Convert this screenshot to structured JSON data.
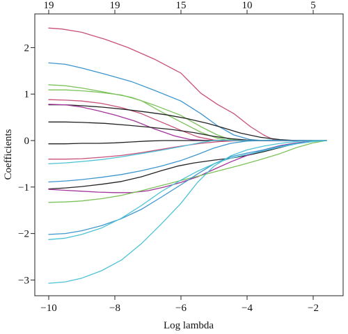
{
  "chart_data": {
    "type": "line",
    "xlabel": "Log lambda",
    "ylabel": "Coefficients",
    "xlim": [
      -10,
      -1.5
    ],
    "ylim": [
      -3.15,
      2.5
    ],
    "x_ticks": [
      -10,
      -8,
      -6,
      -4,
      -2
    ],
    "y_ticks": [
      -3,
      -2,
      -1,
      0,
      1,
      2
    ],
    "x_tick_labels": [
      "−10",
      "−8",
      "−6",
      "−4",
      "−2"
    ],
    "y_tick_labels": [
      "−3",
      "−2",
      "−1",
      "0",
      "1",
      "2"
    ],
    "top_axis": {
      "ticks": [
        -10,
        -8,
        -6,
        -4,
        -2
      ],
      "labels": [
        "19",
        "19",
        "15",
        "10",
        "5"
      ]
    },
    "grid": false,
    "legend": "none",
    "series": [
      {
        "color": "#c8507a",
        "points": [
          [
            -10,
            2.42
          ],
          [
            -9.6,
            2.4
          ],
          [
            -9,
            2.33
          ],
          [
            -8.3,
            2.18
          ],
          [
            -7.6,
            2.0
          ],
          [
            -6.8,
            1.75
          ],
          [
            -6.0,
            1.45
          ],
          [
            -5.4,
            1.02
          ],
          [
            -4.9,
            0.78
          ],
          [
            -4.4,
            0.58
          ],
          [
            -3.9,
            0.3
          ],
          [
            -3.5,
            0.12
          ],
          [
            -3.2,
            0.02
          ],
          [
            -2.9,
            0.0
          ],
          [
            -1.6,
            0.0
          ]
        ]
      },
      {
        "color": "#3d95cf",
        "points": [
          [
            -10,
            1.67
          ],
          [
            -9.5,
            1.64
          ],
          [
            -9,
            1.56
          ],
          [
            -8.3,
            1.43
          ],
          [
            -7.5,
            1.27
          ],
          [
            -6.8,
            1.08
          ],
          [
            -6.0,
            0.85
          ],
          [
            -5.4,
            0.58
          ],
          [
            -4.9,
            0.32
          ],
          [
            -4.4,
            0.12
          ],
          [
            -3.9,
            0.02
          ],
          [
            -3.5,
            0.0
          ],
          [
            -1.6,
            0.0
          ]
        ]
      },
      {
        "color": "#7cc25a",
        "points": [
          [
            -10,
            1.2
          ],
          [
            -9.5,
            1.18
          ],
          [
            -9,
            1.13
          ],
          [
            -8.3,
            1.04
          ],
          [
            -7.5,
            0.93
          ],
          [
            -6.8,
            0.76
          ],
          [
            -6.0,
            0.54
          ],
          [
            -5.4,
            0.3
          ],
          [
            -4.9,
            0.12
          ],
          [
            -4.5,
            0.02
          ],
          [
            -4.2,
            0.0
          ],
          [
            -1.6,
            0.0
          ]
        ]
      },
      {
        "color": "#7cc25a",
        "points": [
          [
            -10,
            1.09
          ],
          [
            -9.5,
            1.09
          ],
          [
            -9,
            1.07
          ],
          [
            -8.5,
            1.04
          ],
          [
            -7.8,
            0.98
          ],
          [
            -7.2,
            0.86
          ],
          [
            -6.6,
            0.62
          ],
          [
            -6.0,
            0.4
          ],
          [
            -5.4,
            0.18
          ],
          [
            -4.9,
            0.05
          ],
          [
            -4.5,
            0.0
          ],
          [
            -1.6,
            0.0
          ]
        ]
      },
      {
        "color": "#c8507a",
        "points": [
          [
            -10,
            0.88
          ],
          [
            -9.5,
            0.87
          ],
          [
            -9,
            0.85
          ],
          [
            -8.4,
            0.8
          ],
          [
            -7.8,
            0.71
          ],
          [
            -7.2,
            0.58
          ],
          [
            -6.6,
            0.4
          ],
          [
            -6.0,
            0.22
          ],
          [
            -5.5,
            0.08
          ],
          [
            -5.0,
            0.01
          ],
          [
            -4.6,
            0.0
          ],
          [
            -1.6,
            0.0
          ]
        ]
      },
      {
        "color": "#222222",
        "points": [
          [
            -10,
            0.77
          ],
          [
            -9.5,
            0.77
          ],
          [
            -9,
            0.75
          ],
          [
            -8.4,
            0.72
          ],
          [
            -7.7,
            0.67
          ],
          [
            -7.0,
            0.61
          ],
          [
            -6.4,
            0.55
          ],
          [
            -5.8,
            0.47
          ],
          [
            -5.2,
            0.37
          ],
          [
            -4.7,
            0.27
          ],
          [
            -4.2,
            0.16
          ],
          [
            -3.6,
            0.07
          ],
          [
            -3.0,
            0.02
          ],
          [
            -2.5,
            0.0
          ],
          [
            -1.6,
            0.0
          ]
        ]
      },
      {
        "color": "#a3339a",
        "points": [
          [
            -10,
            0.78
          ],
          [
            -9.5,
            0.77
          ],
          [
            -9,
            0.72
          ],
          [
            -8.5,
            0.64
          ],
          [
            -8.0,
            0.55
          ],
          [
            -7.4,
            0.42
          ],
          [
            -6.8,
            0.25
          ],
          [
            -6.2,
            0.1
          ],
          [
            -5.7,
            0.02
          ],
          [
            -5.2,
            0.0
          ],
          [
            -1.6,
            0.0
          ]
        ]
      },
      {
        "color": "#222222",
        "points": [
          [
            -10,
            0.4
          ],
          [
            -9.5,
            0.4
          ],
          [
            -9,
            0.39
          ],
          [
            -8.3,
            0.37
          ],
          [
            -7.6,
            0.33
          ],
          [
            -7.0,
            0.29
          ],
          [
            -6.3,
            0.24
          ],
          [
            -5.6,
            0.17
          ],
          [
            -5.0,
            0.09
          ],
          [
            -4.5,
            0.04
          ],
          [
            -4.0,
            0.01
          ],
          [
            -3.5,
            0.0
          ],
          [
            -1.6,
            0.0
          ]
        ]
      },
      {
        "color": "#222222",
        "points": [
          [
            -10,
            -0.07
          ],
          [
            -9.5,
            -0.07
          ],
          [
            -9,
            -0.06
          ],
          [
            -8.5,
            -0.06
          ],
          [
            -8.0,
            -0.05
          ],
          [
            -7.5,
            -0.03
          ],
          [
            -7.0,
            -0.01
          ],
          [
            -6.5,
            0.0
          ],
          [
            -1.6,
            0.0
          ]
        ]
      },
      {
        "color": "#c8507a",
        "points": [
          [
            -10,
            -0.4
          ],
          [
            -9.5,
            -0.4
          ],
          [
            -9,
            -0.39
          ],
          [
            -8.4,
            -0.36
          ],
          [
            -7.8,
            -0.32
          ],
          [
            -7.2,
            -0.26
          ],
          [
            -6.6,
            -0.19
          ],
          [
            -6.0,
            -0.12
          ],
          [
            -5.4,
            -0.06
          ],
          [
            -4.8,
            -0.02
          ],
          [
            -4.2,
            0.0
          ],
          [
            -1.6,
            0.0
          ]
        ]
      },
      {
        "color": "#4cc2d6",
        "points": [
          [
            -10,
            -0.5
          ],
          [
            -9.5,
            -0.48
          ],
          [
            -9,
            -0.45
          ],
          [
            -8.4,
            -0.41
          ],
          [
            -7.8,
            -0.35
          ],
          [
            -7.2,
            -0.28
          ],
          [
            -6.6,
            -0.21
          ],
          [
            -6.0,
            -0.13
          ],
          [
            -5.4,
            -0.04
          ],
          [
            -5.0,
            0.0
          ],
          [
            -4.7,
            0.01
          ],
          [
            -4.3,
            0.0
          ],
          [
            -3.8,
            0.0
          ],
          [
            -3.3,
            0.01
          ],
          [
            -2.8,
            0.0
          ],
          [
            -1.6,
            0.0
          ]
        ]
      },
      {
        "color": "#3d95cf",
        "points": [
          [
            -10,
            -0.89
          ],
          [
            -9.5,
            -0.87
          ],
          [
            -9,
            -0.84
          ],
          [
            -8.4,
            -0.79
          ],
          [
            -7.8,
            -0.73
          ],
          [
            -7.2,
            -0.65
          ],
          [
            -6.6,
            -0.55
          ],
          [
            -6.0,
            -0.43
          ],
          [
            -5.5,
            -0.3
          ],
          [
            -5.0,
            -0.16
          ],
          [
            -4.5,
            -0.06
          ],
          [
            -4.0,
            -0.01
          ],
          [
            -3.5,
            0.0
          ],
          [
            -1.6,
            0.0
          ]
        ]
      },
      {
        "color": "#222222",
        "points": [
          [
            -10,
            -1.04
          ],
          [
            -9.5,
            -1.02
          ],
          [
            -9,
            -0.99
          ],
          [
            -8.4,
            -0.94
          ],
          [
            -7.8,
            -0.88
          ],
          [
            -7.2,
            -0.78
          ],
          [
            -6.6,
            -0.65
          ],
          [
            -6.1,
            -0.55
          ],
          [
            -5.6,
            -0.48
          ],
          [
            -5.0,
            -0.42
          ],
          [
            -4.5,
            -0.38
          ],
          [
            -4.0,
            -0.32
          ],
          [
            -3.5,
            -0.24
          ],
          [
            -3.0,
            -0.15
          ],
          [
            -2.5,
            -0.06
          ],
          [
            -2.0,
            -0.01
          ],
          [
            -1.6,
            0.0
          ]
        ]
      },
      {
        "color": "#a3339a",
        "points": [
          [
            -10,
            -1.05
          ],
          [
            -9.5,
            -1.07
          ],
          [
            -9,
            -1.09
          ],
          [
            -8.5,
            -1.11
          ],
          [
            -8.0,
            -1.12
          ],
          [
            -7.5,
            -1.12
          ],
          [
            -7.0,
            -1.08
          ],
          [
            -6.5,
            -1.0
          ],
          [
            -6.0,
            -0.9
          ],
          [
            -5.5,
            -0.78
          ],
          [
            -5.0,
            -0.62
          ],
          [
            -4.5,
            -0.46
          ],
          [
            -4.0,
            -0.32
          ],
          [
            -3.5,
            -0.2
          ],
          [
            -3.0,
            -0.11
          ],
          [
            -2.5,
            -0.05
          ],
          [
            -2.0,
            -0.01
          ],
          [
            -1.6,
            0.0
          ]
        ]
      },
      {
        "color": "#7cc25a",
        "points": [
          [
            -10,
            -1.33
          ],
          [
            -9.5,
            -1.32
          ],
          [
            -9,
            -1.3
          ],
          [
            -8.4,
            -1.25
          ],
          [
            -7.8,
            -1.18
          ],
          [
            -7.2,
            -1.08
          ],
          [
            -6.6,
            -0.97
          ],
          [
            -6.0,
            -0.86
          ],
          [
            -5.4,
            -0.75
          ],
          [
            -4.8,
            -0.64
          ],
          [
            -4.2,
            -0.53
          ],
          [
            -3.6,
            -0.41
          ],
          [
            -3.0,
            -0.28
          ],
          [
            -2.5,
            -0.15
          ],
          [
            -2.0,
            -0.05
          ],
          [
            -1.6,
            0.0
          ]
        ]
      },
      {
        "color": "#3d95cf",
        "points": [
          [
            -10,
            -2.02
          ],
          [
            -9.5,
            -2.0
          ],
          [
            -9,
            -1.94
          ],
          [
            -8.4,
            -1.83
          ],
          [
            -7.8,
            -1.68
          ],
          [
            -7.2,
            -1.48
          ],
          [
            -6.6,
            -1.22
          ],
          [
            -6.0,
            -0.95
          ],
          [
            -5.5,
            -0.72
          ],
          [
            -5.0,
            -0.5
          ],
          [
            -4.5,
            -0.35
          ],
          [
            -4.0,
            -0.27
          ],
          [
            -3.5,
            -0.2
          ],
          [
            -3.0,
            -0.12
          ],
          [
            -2.5,
            -0.06
          ],
          [
            -2.0,
            -0.02
          ],
          [
            -1.6,
            0.0
          ]
        ]
      },
      {
        "color": "#4cc2d6",
        "points": [
          [
            -10,
            -2.13
          ],
          [
            -9.5,
            -2.1
          ],
          [
            -9,
            -2.02
          ],
          [
            -8.4,
            -1.88
          ],
          [
            -7.8,
            -1.67
          ],
          [
            -7.2,
            -1.4
          ],
          [
            -6.6,
            -1.1
          ],
          [
            -6.0,
            -0.85
          ],
          [
            -5.5,
            -0.66
          ],
          [
            -5.0,
            -0.5
          ],
          [
            -4.5,
            -0.38
          ],
          [
            -4.0,
            -0.3
          ],
          [
            -3.5,
            -0.22
          ],
          [
            -3.0,
            -0.14
          ],
          [
            -2.5,
            -0.07
          ],
          [
            -2.0,
            -0.02
          ],
          [
            -1.6,
            0.0
          ]
        ]
      },
      {
        "color": "#4cc2d6",
        "points": [
          [
            -10,
            -3.07
          ],
          [
            -9.5,
            -3.04
          ],
          [
            -9,
            -2.96
          ],
          [
            -8.4,
            -2.8
          ],
          [
            -7.8,
            -2.57
          ],
          [
            -7.2,
            -2.22
          ],
          [
            -6.6,
            -1.8
          ],
          [
            -6.0,
            -1.35
          ],
          [
            -5.5,
            -0.9
          ],
          [
            -5.0,
            -0.55
          ],
          [
            -4.5,
            -0.33
          ],
          [
            -4.0,
            -0.2
          ],
          [
            -3.5,
            -0.12
          ],
          [
            -3.0,
            -0.06
          ],
          [
            -2.5,
            -0.02
          ],
          [
            -2.0,
            0.0
          ],
          [
            -1.6,
            0.0
          ]
        ]
      }
    ]
  }
}
